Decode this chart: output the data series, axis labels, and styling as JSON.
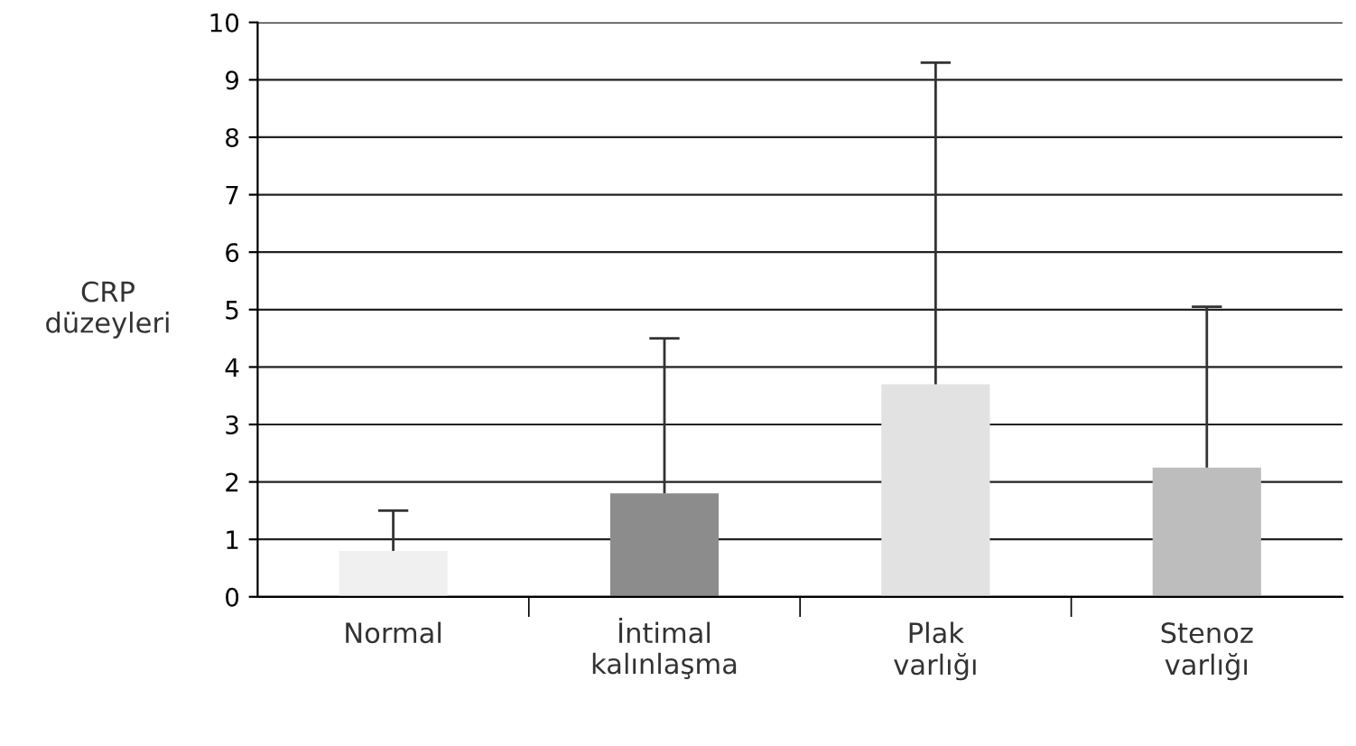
{
  "chart_data": {
    "type": "bar",
    "ylabel": "CRP\ndüzeyleri",
    "categories": [
      "Normal",
      "İntimal\nkalınlaşma",
      "Plak\nvarlığı",
      "Stenoz\nvarlığı"
    ],
    "values": [
      0.8,
      1.8,
      3.7,
      2.25
    ],
    "colors": [
      "#f0f0f0",
      "#8c8c8c",
      "#e2e2e2",
      "#bdbdbd"
    ],
    "errors": [
      [
        0.8,
        1.5
      ],
      [
        1.8,
        4.5
      ],
      [
        3.7,
        9.3
      ],
      [
        2.25,
        5.05
      ]
    ],
    "ylim": [
      0,
      10
    ],
    "yticks": [
      0,
      1,
      2,
      3,
      4,
      5,
      6,
      7,
      8,
      9,
      10
    ],
    "grid": "y"
  }
}
